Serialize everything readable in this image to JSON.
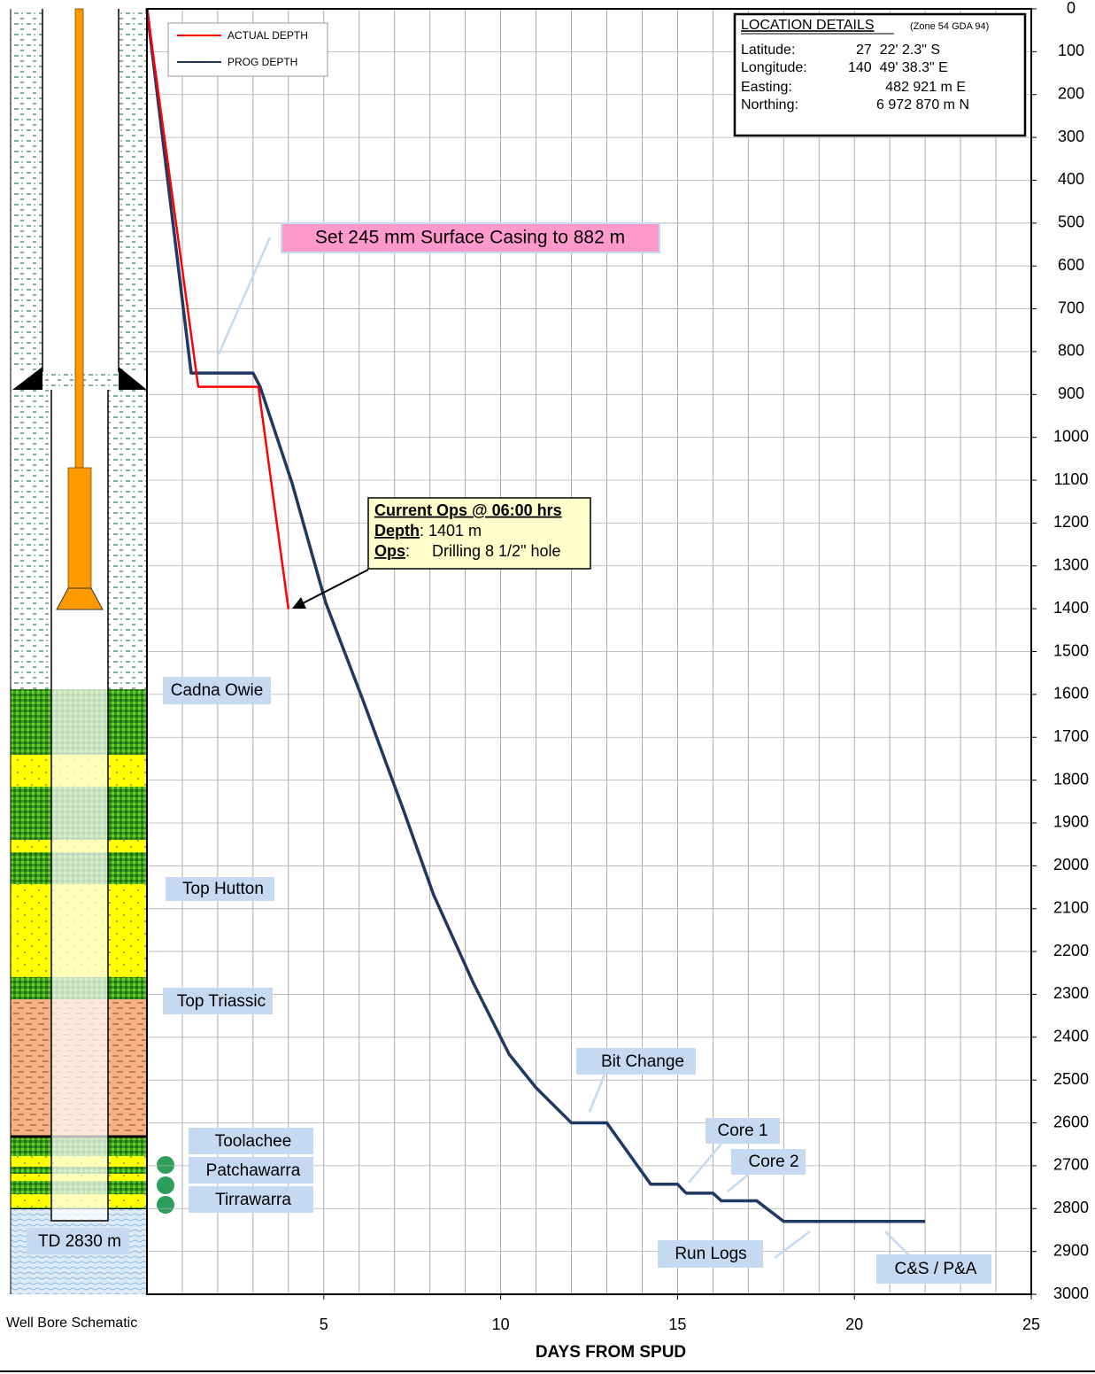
{
  "chart_data": {
    "type": "line",
    "x_label": "DAYS FROM SPUD",
    "xlim": [
      0,
      25
    ],
    "xticks": [
      5,
      10,
      15,
      20,
      25
    ],
    "x_grid": [
      0,
      1,
      2,
      3,
      4,
      5,
      6,
      7,
      8,
      9,
      10,
      11,
      12,
      13,
      14,
      15,
      16,
      17,
      18,
      19,
      20,
      21,
      22,
      23,
      24,
      25
    ],
    "ylim": [
      0,
      3000
    ],
    "y_inverted": true,
    "yticks": [
      0,
      100,
      200,
      300,
      400,
      500,
      600,
      700,
      800,
      900,
      1000,
      1100,
      1200,
      1300,
      1400,
      1500,
      1600,
      1700,
      1800,
      1900,
      2000,
      2100,
      2200,
      2300,
      2400,
      2500,
      2600,
      2700,
      2800,
      2900,
      3000
    ],
    "grid": true,
    "series": [
      {
        "name": "ACTUAL DEPTH",
        "color": "#ff0000",
        "width": 2.5,
        "x": [
          0,
          1.45,
          3.15,
          4.0
        ],
        "values": [
          0,
          882,
          882,
          1401
        ]
      },
      {
        "name": "PROG DEPTH",
        "color": "#1f3864",
        "width": 3.5,
        "x": [
          0,
          1.25,
          3.0,
          3.2,
          4.1,
          5.05,
          6.1,
          7.23,
          8.1,
          9.23,
          10.24,
          11.0,
          12.0,
          13.0,
          14.24,
          15.0,
          15.24,
          16.0,
          16.24,
          17.24,
          18.0,
          22.0
        ],
        "values": [
          0,
          850,
          850,
          882,
          1106,
          1385,
          1612,
          1865,
          2067,
          2274,
          2440,
          2518,
          2600,
          2600,
          2743,
          2743,
          2764,
          2764,
          2782,
          2782,
          2830,
          2830
        ]
      }
    ],
    "annotations": {
      "casing": "Set 245 mm Surface Casing to 882 m",
      "current_ops_title": "Current Ops @ 06:00 hrs",
      "depth_label": "Depth",
      "depth_value": ": 1401 m",
      "ops_label": "Ops",
      "ops_value": ":     Drilling 8 1/2\" hole",
      "bit_change": "Bit Change",
      "core1": "Core 1",
      "core2": "Core 2",
      "run_logs": "Run Logs",
      "cs_pa": "C&S / P&A"
    },
    "formations": [
      "Cadna Owie",
      "Top Hutton",
      "Top Triassic",
      "Toolachee",
      "Patchawarra",
      "Tirrawarra",
      "TD 2830 m"
    ],
    "schematic_label": "Well Bore Schematic",
    "location_details": {
      "title": "LOCATION DETAILS",
      "zone": "(Zone 54 GDA 94)",
      "rows": [
        [
          "Latitude:",
          "27  22' 2.3\" S"
        ],
        [
          "Longitude:",
          "140  49' 38.3\" E"
        ],
        [
          "Easting:",
          "482 921 m E"
        ],
        [
          "Northing:",
          "6 972 870 m N"
        ]
      ]
    }
  }
}
